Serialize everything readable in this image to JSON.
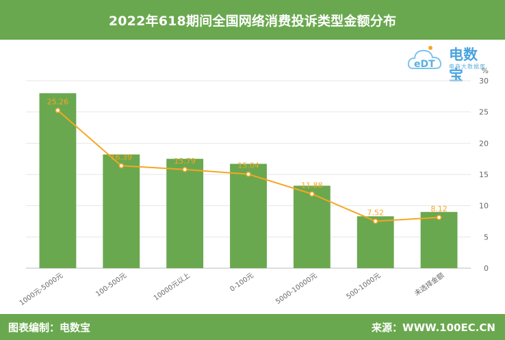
{
  "header": {
    "title": "2022年618期间全国网络消费投诉类型金额分布"
  },
  "logo": {
    "brand": "电数宝",
    "badge": "eDT",
    "sub": "电商大数据库"
  },
  "footer": {
    "left": "图表编制：电数宝",
    "right": "来源：WWW.100EC.CN"
  },
  "colors": {
    "bar": "#6aa84f",
    "line": "#f5a623",
    "header": "#6aa84f",
    "text": "#666666"
  },
  "chart_data": {
    "type": "bar",
    "categories": [
      "1000元-5000元",
      "100-500元",
      "10000元以上",
      "0-100元",
      "5000-10000元",
      "500-1000元",
      "未选择金额"
    ],
    "series": [
      {
        "type": "bar",
        "values": [
          28.0,
          18.2,
          17.5,
          16.7,
          13.2,
          8.3,
          9.0
        ]
      },
      {
        "type": "line",
        "values": [
          25.26,
          16.39,
          15.79,
          15.04,
          11.88,
          7.52,
          8.12
        ],
        "labels": [
          "25.26",
          "16.39",
          "15.79",
          "15.04",
          "11.88",
          "7.52",
          "8.12"
        ]
      }
    ],
    "y_unit": "%",
    "ylim": [
      0,
      30
    ],
    "y_ticks": [
      "0",
      "5",
      "10",
      "15",
      "20",
      "25",
      "30"
    ],
    "grid": true
  }
}
